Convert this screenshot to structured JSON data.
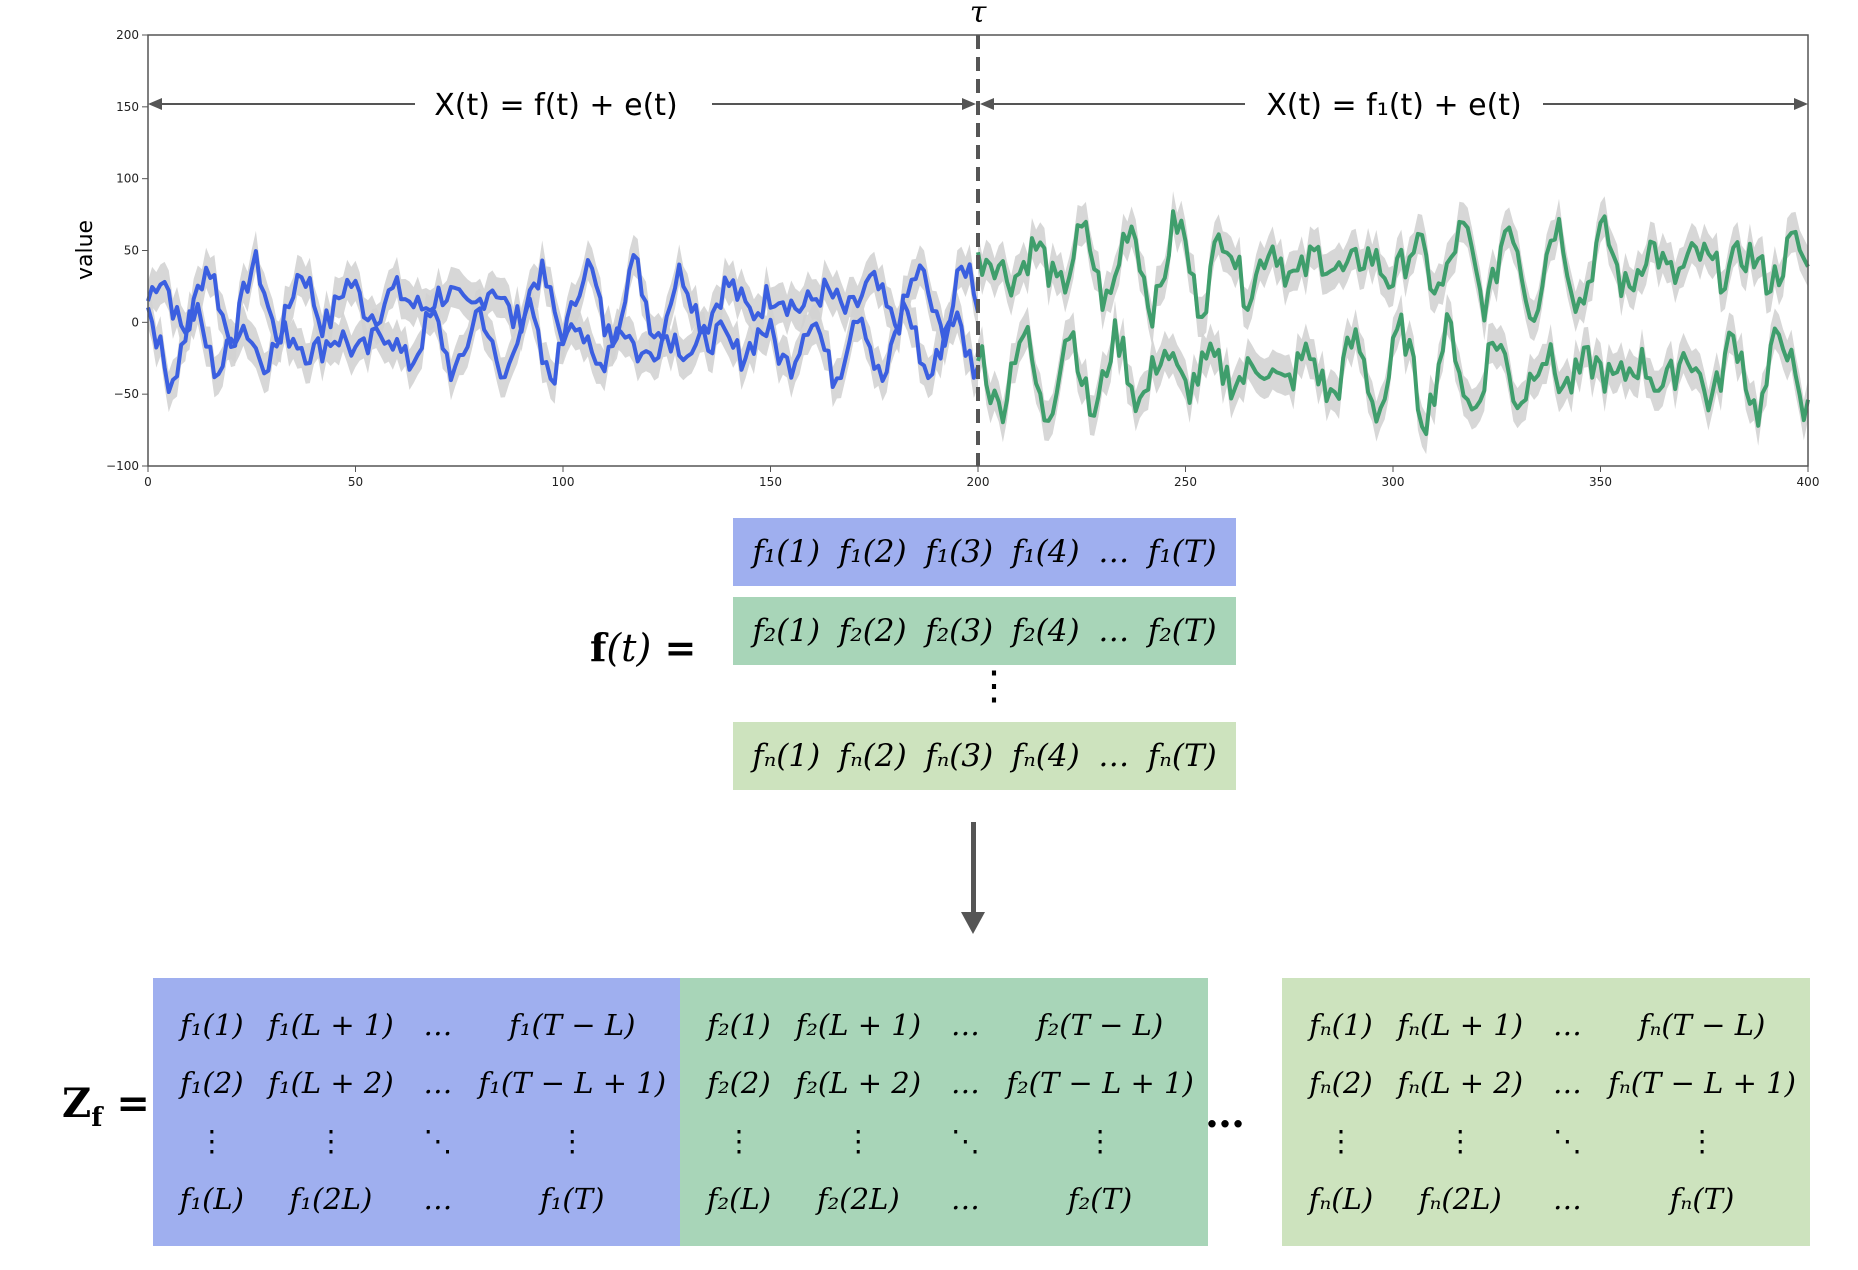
{
  "chart_data": {
    "type": "line",
    "ylabel": "value",
    "xlim": [
      0,
      400
    ],
    "ylim": [
      -100,
      200
    ],
    "xticks": [
      "0",
      "50",
      "100",
      "150",
      "200",
      "250",
      "300",
      "350",
      "400"
    ],
    "yticks": [
      "200",
      "150",
      "100",
      "50",
      "0",
      "−50",
      "−100"
    ],
    "change_point": 200,
    "change_point_label": "τ",
    "segment_left_label": "X(t) = f(t) + e(t)",
    "segment_right_label": "X(t) = f₁(t) + e(t)",
    "grid": false,
    "colors": {
      "before": "#3b5fe0",
      "after": "#3f9e6c",
      "band": "#d3d3d3",
      "axis": "#555555"
    },
    "series": [
      {
        "segment": "before",
        "x_range": [
          0,
          200
        ],
        "mean": 15,
        "amplitude": 25,
        "y_approx_range": [
          -35,
          85
        ]
      },
      {
        "segment": "before",
        "x_range": [
          0,
          200
        ],
        "mean": -15,
        "amplitude": 25,
        "y_approx_range": [
          -55,
          35
        ]
      },
      {
        "segment": "after",
        "x_range": [
          200,
          400
        ],
        "mean": 40,
        "amplitude": 30,
        "y_approx_range": [
          -5,
          102
        ]
      },
      {
        "segment": "after",
        "x_range": [
          200,
          400
        ],
        "mean": -35,
        "amplitude": 30,
        "y_approx_range": [
          -80,
          10
        ]
      }
    ]
  },
  "f_vector": {
    "lhs": "f",
    "lhs_arg": "(t)",
    "lhs_eq": " =",
    "rows": [
      {
        "cells": [
          "f₁(1)",
          "f₁(2)",
          "f₁(3)",
          "f₁(4)",
          "…",
          "f₁(T)"
        ]
      },
      {
        "cells": [
          "f₂(1)",
          "f₂(2)",
          "f₂(3)",
          "f₂(4)",
          "…",
          "f₂(T)"
        ]
      },
      {
        "cells": [
          "fₙ(1)",
          "fₙ(2)",
          "fₙ(3)",
          "fₙ(4)",
          "…",
          "fₙ(T)"
        ]
      }
    ],
    "vdots": "⋮"
  },
  "z_matrix": {
    "label": "Z",
    "label_sub": "f",
    "label_eq": " =",
    "between_dots": "…",
    "blocks": [
      {
        "cells": [
          "f₁(1)",
          "f₁(L + 1)",
          "…",
          "f₁(T − L)",
          "f₁(2)",
          "f₁(L + 2)",
          "…",
          "f₁(T − L + 1)",
          "⋮",
          "⋮",
          "⋱",
          "⋮",
          "f₁(L)",
          "f₁(2L)",
          "…",
          "f₁(T)"
        ]
      },
      {
        "cells": [
          "f₂(1)",
          "f₂(L + 1)",
          "…",
          "f₂(T − L)",
          "f₂(2)",
          "f₂(L + 2)",
          "…",
          "f₂(T − L + 1)",
          "⋮",
          "⋮",
          "⋱",
          "⋮",
          "f₂(L)",
          "f₂(2L)",
          "…",
          "f₂(T)"
        ]
      },
      {
        "cells": [
          "fₙ(1)",
          "fₙ(L + 1)",
          "…",
          "fₙ(T − L)",
          "fₙ(2)",
          "fₙ(L + 2)",
          "…",
          "fₙ(T − L + 1)",
          "⋮",
          "⋮",
          "⋱",
          "⋮",
          "fₙ(L)",
          "fₙ(2L)",
          "…",
          "fₙ(T)"
        ]
      }
    ]
  }
}
